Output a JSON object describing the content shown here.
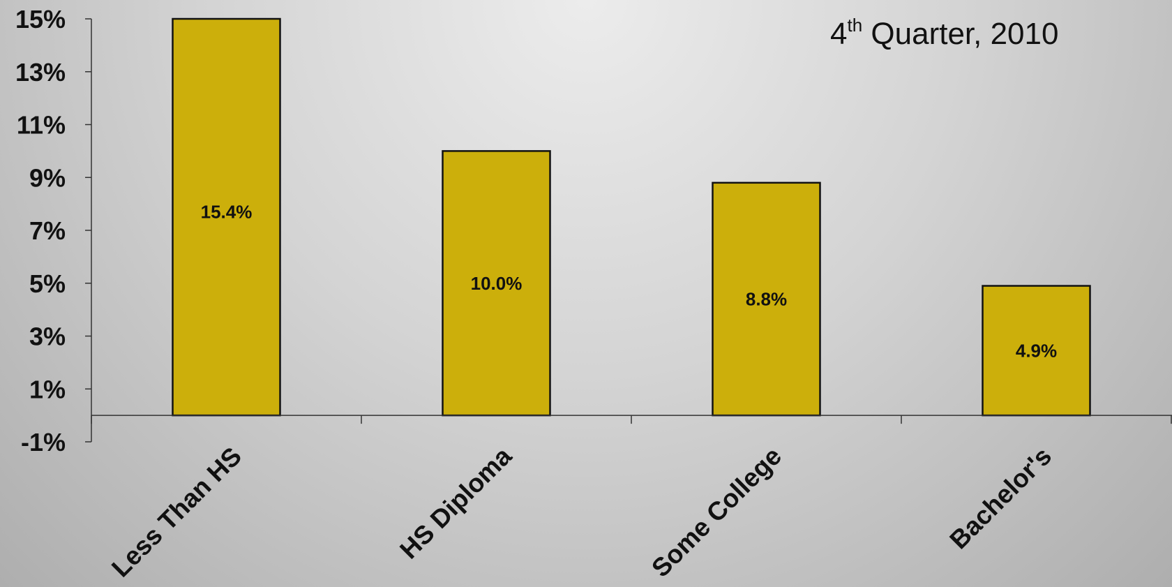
{
  "chart_data": {
    "type": "bar",
    "title": "4th Quarter, 2010",
    "title_parts": {
      "lead": "4",
      "superscript": "th",
      "rest": " Quarter, 2010"
    },
    "categories": [
      "Less Than HS",
      "HS Diploma",
      "Some College",
      "Bachelor's"
    ],
    "values": [
      15.4,
      10.0,
      8.8,
      4.9
    ],
    "data_labels": [
      "15.4%",
      "10.0%",
      "8.8%",
      "4.9%"
    ],
    "y_ticks": [
      -1,
      1,
      3,
      5,
      7,
      9,
      11,
      13,
      15
    ],
    "y_tick_labels": [
      "-1%",
      "1%",
      "3%",
      "5%",
      "7%",
      "9%",
      "11%",
      "13%",
      "15%"
    ],
    "ylim": [
      -1,
      15
    ],
    "xlabel": "",
    "ylabel": "",
    "grid": false,
    "legend": "none",
    "colors": {
      "bar": "#CCAF0B",
      "bar_edge": "#111111",
      "axis": "#333333"
    }
  }
}
